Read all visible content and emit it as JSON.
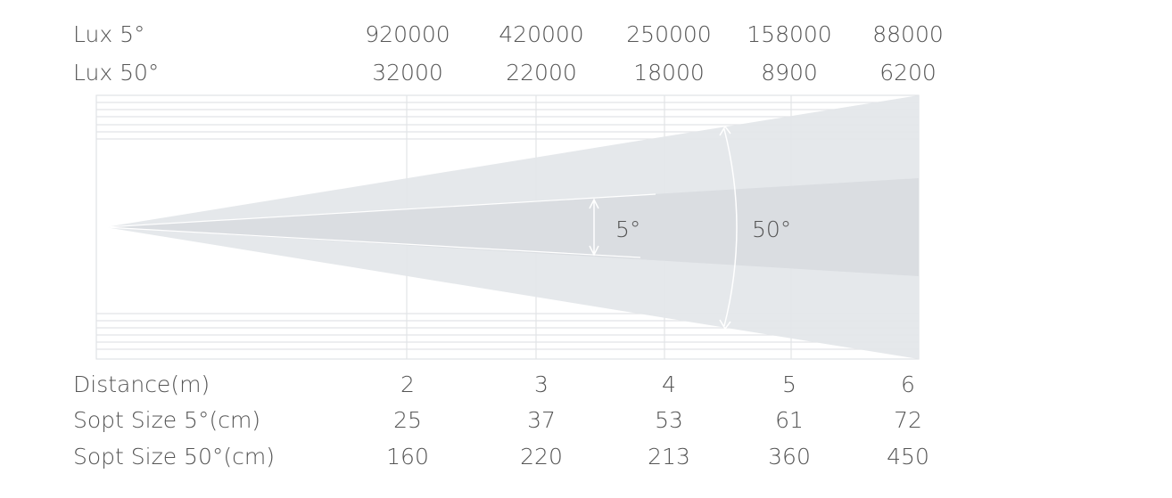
{
  "top_rows": [
    {
      "label": "Lux 5°",
      "values": [
        920000,
        420000,
        250000,
        158000,
        88000
      ]
    },
    {
      "label": "Lux 50°",
      "values": [
        32000,
        22000,
        18000,
        8900,
        6200
      ]
    }
  ],
  "bottom_rows": [
    {
      "label": "Distance(m)",
      "values": [
        2,
        3,
        4,
        5,
        6
      ]
    },
    {
      "label": "Sopt Size 5°(cm)",
      "values": [
        25,
        37,
        53,
        61,
        72
      ]
    },
    {
      "label": "Sopt Size 50°(cm)",
      "values": [
        160,
        220,
        213,
        360,
        450
      ]
    }
  ],
  "beams": {
    "narrow": "5°",
    "wide": "50°"
  }
}
